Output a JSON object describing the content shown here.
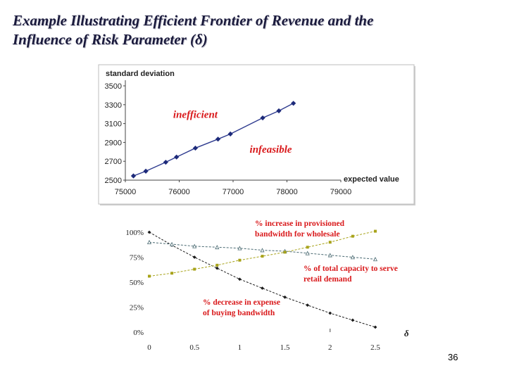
{
  "slide": {
    "title_line1": "Example Illustrating Efficient Frontier of Revenue and the",
    "title_line2": "Influence of Risk Parameter (δ)",
    "page_number": "36"
  },
  "chart_data": [
    {
      "type": "line",
      "ylabel": "standard deviation",
      "xlabel": "expected value",
      "xlim": [
        75000,
        79000
      ],
      "ylim": [
        2500,
        3500
      ],
      "x_ticks": [
        75000,
        76000,
        77000,
        78000,
        79000
      ],
      "y_ticks": [
        2500,
        2700,
        2900,
        3100,
        3300,
        3500
      ],
      "grid": false,
      "annotations": [
        {
          "text": "inefficient",
          "x": 76300,
          "y": 3160
        },
        {
          "text": "infeasible",
          "x": 77700,
          "y": 2790
        }
      ],
      "colors": {
        "line": "#2e3b8f",
        "annotation": "#d9191b"
      },
      "series": [
        {
          "x": [
            75150,
            75380,
            75750,
            75950,
            76300,
            76720,
            76950,
            77550,
            77850,
            78120
          ],
          "y": [
            2545,
            2595,
            2690,
            2745,
            2840,
            2935,
            2990,
            3160,
            3235,
            3315
          ]
        }
      ]
    },
    {
      "type": "line",
      "xlabel": "δ",
      "xlim": [
        0,
        2.5
      ],
      "ylim": [
        0,
        100
      ],
      "x_ticks": [
        "0",
        "0.5",
        "1",
        "1.5",
        "2",
        "2.5"
      ],
      "y_ticks": [
        "0%",
        "25%",
        "50%",
        "75%",
        "100%"
      ],
      "grid": false,
      "annotations": [
        {
          "lines": [
            "% increase in provisioned",
            "bandwidth for wholesale"
          ],
          "color": "#d9191b"
        },
        {
          "lines": [
            "% of total capacity to serve",
            "retail demand"
          ],
          "color": "#d9191b"
        },
        {
          "lines": [
            "% decrease in  expense",
            " of buying bandwidth"
          ],
          "color": "#d9191b"
        }
      ],
      "series": [
        {
          "color": "#1a1a1a",
          "marker": "diamond",
          "x": [
            0,
            0.25,
            0.5,
            0.75,
            1.0,
            1.25,
            1.5,
            1.75,
            2.0,
            2.25,
            2.5
          ],
          "y": [
            100,
            87,
            75,
            64,
            53,
            44,
            35,
            27,
            19,
            12,
            5
          ]
        },
        {
          "color": "#4a6a72",
          "marker": "triangle",
          "x": [
            0,
            0.25,
            0.5,
            0.75,
            1.0,
            1.25,
            1.5,
            1.75,
            2.0,
            2.25,
            2.5
          ],
          "y": [
            90,
            88,
            86,
            85,
            84,
            82,
            81,
            79,
            77,
            75,
            73
          ]
        },
        {
          "color": "#a8a31a",
          "marker": "square",
          "x": [
            0,
            0.25,
            0.5,
            0.75,
            1.0,
            1.25,
            1.5,
            1.75,
            2.0,
            2.25,
            2.5
          ],
          "y": [
            56,
            59,
            63,
            67,
            72,
            76,
            80,
            85,
            90,
            96,
            101
          ]
        }
      ]
    }
  ]
}
